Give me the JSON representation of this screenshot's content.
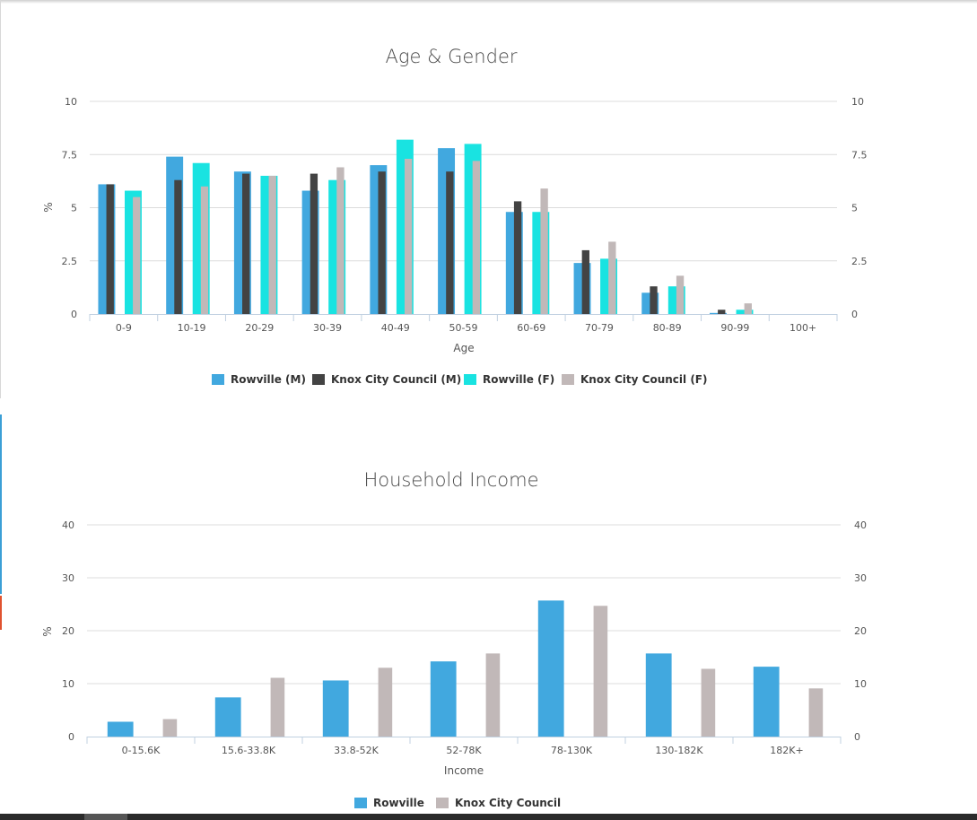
{
  "colors": {
    "rowville_m": "#41a8df",
    "knox_m": "#434343",
    "rowville_f": "#19e3e1",
    "knox_f": "#c1b8b8",
    "rowville": "#41a8df",
    "knox": "#c1b8b8"
  },
  "chart_data": [
    {
      "type": "bar",
      "title": "Age & Gender",
      "xlabel": "Age",
      "ylabel": "%",
      "ylim": [
        0,
        10
      ],
      "yticks": [
        "0",
        "2.5",
        "5",
        "7.5",
        "10"
      ],
      "yticks_right": [
        "0",
        "2.5",
        "5",
        "7.5",
        "10"
      ],
      "grid": true,
      "legend_position": "bottom",
      "categories": [
        "0-9",
        "10-19",
        "20-29",
        "30-39",
        "40-49",
        "50-59",
        "60-69",
        "70-79",
        "80-89",
        "90-99",
        "100+"
      ],
      "series": [
        {
          "name": "Rowville (M)",
          "values": [
            6.1,
            7.4,
            6.7,
            5.8,
            7.0,
            7.8,
            4.8,
            2.4,
            1.0,
            0.05,
            0
          ]
        },
        {
          "name": "Knox City Council (M)",
          "values": [
            6.1,
            6.3,
            6.6,
            6.6,
            6.7,
            6.7,
            5.3,
            3.0,
            1.3,
            0.2,
            0
          ]
        },
        {
          "name": "Rowville (F)",
          "values": [
            5.8,
            7.1,
            6.5,
            6.3,
            8.2,
            8.0,
            4.8,
            2.6,
            1.3,
            0.2,
            0
          ]
        },
        {
          "name": "Knox City Council (F)",
          "values": [
            5.5,
            6.0,
            6.5,
            6.9,
            7.3,
            7.2,
            5.9,
            3.4,
            1.8,
            0.5,
            0
          ]
        }
      ]
    },
    {
      "type": "bar",
      "title": "Household Income",
      "xlabel": "Income",
      "ylabel": "%",
      "ylim": [
        0,
        40
      ],
      "yticks": [
        "0",
        "10",
        "20",
        "30",
        "40"
      ],
      "yticks_right": [
        "0",
        "10",
        "20",
        "30",
        "40"
      ],
      "grid": true,
      "legend_position": "bottom",
      "categories": [
        "0-15.6K",
        "15.6-33.8K",
        "33.8-52K",
        "52-78K",
        "78-130K",
        "130-182K",
        "182K+"
      ],
      "series": [
        {
          "name": "Rowville",
          "values": [
            2.8,
            7.4,
            10.6,
            14.2,
            25.7,
            15.7,
            13.2
          ]
        },
        {
          "name": "Knox City Council",
          "values": [
            3.3,
            11.1,
            13.0,
            15.7,
            24.7,
            12.8,
            9.1
          ]
        }
      ]
    }
  ]
}
